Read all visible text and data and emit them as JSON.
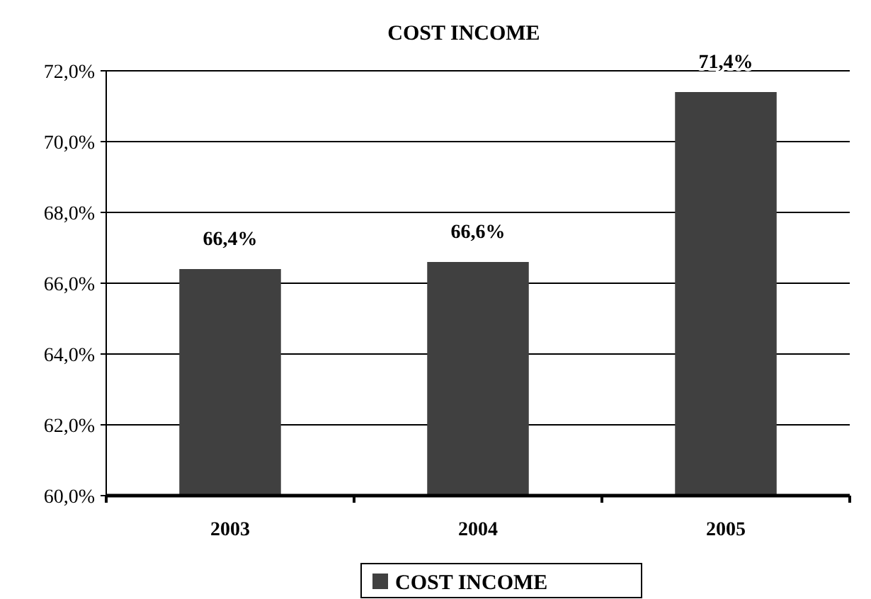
{
  "chart_data": {
    "type": "bar",
    "title": "COST INCOME",
    "categories": [
      "2003",
      "2004",
      "2005"
    ],
    "series": [
      {
        "name": "COST INCOME",
        "color": "#404040",
        "values": [
          66.4,
          66.6,
          71.4
        ],
        "value_labels": [
          "66,4%",
          "66,6%",
          "71,4%"
        ]
      }
    ],
    "ylim": [
      60,
      72
    ],
    "yticks": [
      {
        "value": 60,
        "label": "60,0%"
      },
      {
        "value": 62,
        "label": "62,0%"
      },
      {
        "value": 64,
        "label": "64,0%"
      },
      {
        "value": 66,
        "label": "66,0%"
      },
      {
        "value": 68,
        "label": "68,0%"
      },
      {
        "value": 70,
        "label": "70,0%"
      },
      {
        "value": 72,
        "label": "72,0%"
      }
    ],
    "grid": "y",
    "legend": "bottom"
  }
}
